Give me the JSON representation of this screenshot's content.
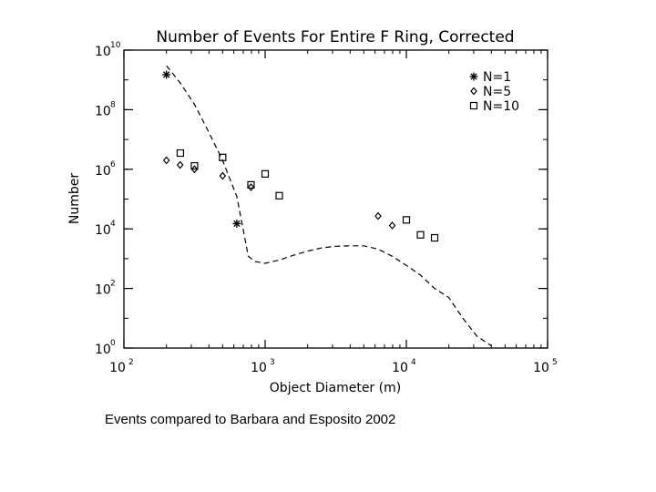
{
  "chart_data": {
    "type": "scatter",
    "title": "Number of Events For Entire F Ring, Corrected",
    "xlabel": "Object Diameter (m)",
    "ylabel": "Number",
    "x_scale": "log",
    "y_scale": "log",
    "xlim": [
      100,
      100000
    ],
    "ylim": [
      1,
      10000000000
    ],
    "x_ticks": [
      {
        "base": "10",
        "exp": "2",
        "value": 100
      },
      {
        "base": "10",
        "exp": "3",
        "value": 1000
      },
      {
        "base": "10",
        "exp": "4",
        "value": 10000
      },
      {
        "base": "10",
        "exp": "5",
        "value": 100000
      }
    ],
    "y_ticks": [
      {
        "base": "10",
        "exp": "0",
        "value": 1
      },
      {
        "base": "10",
        "exp": "2",
        "value": 100
      },
      {
        "base": "10",
        "exp": "4",
        "value": 10000
      },
      {
        "base": "10",
        "exp": "6",
        "value": 1000000
      },
      {
        "base": "10",
        "exp": "8",
        "value": 100000000
      },
      {
        "base": "10",
        "exp": "10",
        "value": 10000000000
      }
    ],
    "legend_position": "top-right",
    "series": [
      {
        "name": "N=1",
        "marker": "asterisk",
        "points": [
          [
            200,
            1500000000
          ],
          [
            630,
            15000
          ]
        ]
      },
      {
        "name": "N=5",
        "marker": "diamond",
        "points": [
          [
            200,
            2000000
          ],
          [
            250,
            1400000
          ],
          [
            316,
            1000000
          ],
          [
            500,
            600000
          ],
          [
            794,
            250000
          ],
          [
            6310,
            27000
          ],
          [
            7943,
            13000
          ]
        ]
      },
      {
        "name": "N=10",
        "marker": "square",
        "points": [
          [
            251,
            3500000
          ],
          [
            316,
            1300000
          ],
          [
            500,
            2500000
          ],
          [
            794,
            300000
          ],
          [
            1000,
            700000
          ],
          [
            1259,
            130000
          ],
          [
            10000,
            20000
          ],
          [
            12589,
            6300
          ],
          [
            15849,
            5000
          ]
        ]
      }
    ],
    "model_curve": {
      "style": "dashed",
      "points": [
        [
          200,
          3000000000
        ],
        [
          250,
          800000000
        ],
        [
          316,
          150000000
        ],
        [
          398,
          18000000
        ],
        [
          500,
          2000000
        ],
        [
          631,
          120000
        ],
        [
          760,
          1200
        ],
        [
          850,
          800
        ],
        [
          1000,
          700
        ],
        [
          1259,
          900
        ],
        [
          1585,
          1300
        ],
        [
          2000,
          1800
        ],
        [
          2512,
          2300
        ],
        [
          3162,
          2600
        ],
        [
          3981,
          2700
        ],
        [
          5012,
          2700
        ],
        [
          6310,
          2100
        ],
        [
          7943,
          1200
        ],
        [
          10000,
          600
        ],
        [
          12589,
          280
        ],
        [
          15849,
          100
        ],
        [
          19953,
          50
        ],
        [
          25119,
          10
        ],
        [
          31623,
          2.5
        ],
        [
          39811,
          1.2
        ]
      ]
    }
  },
  "caption": "Events compared to Barbara and Esposito 2002"
}
